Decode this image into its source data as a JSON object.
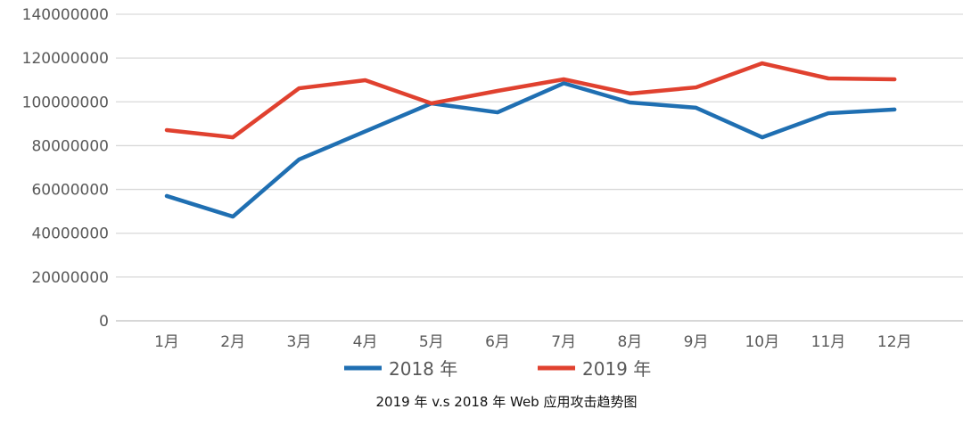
{
  "chart_data": {
    "type": "line",
    "title": "2019 年 v.s 2018 年 Web 应用攻击趋势图",
    "xlabel": "",
    "ylabel": "",
    "categories": [
      "1月",
      "2月",
      "3月",
      "4月",
      "5月",
      "6月",
      "7月",
      "8月",
      "9月",
      "10月",
      "11月",
      "12月"
    ],
    "ylim": [
      0,
      140000000
    ],
    "yticks": [
      0,
      20000000,
      40000000,
      60000000,
      80000000,
      100000000,
      120000000,
      140000000
    ],
    "ytick_labels": [
      "0",
      "20000000",
      "40000000",
      "60000000",
      "80000000",
      "100000000",
      "120000000",
      "140000000"
    ],
    "grid": true,
    "legend_position": "bottom",
    "series": [
      {
        "name": "2018 年",
        "color": "#1f6fb2",
        "values": [
          57000000,
          47600000,
          73700000,
          86500000,
          99300000,
          95200000,
          108500000,
          99700000,
          97300000,
          83800000,
          94800000,
          96500000
        ]
      },
      {
        "name": "2019 年",
        "color": "#e0412f",
        "values": [
          87100000,
          83800000,
          106200000,
          109900000,
          99300000,
          105000000,
          110300000,
          103800000,
          106600000,
          117600000,
          110700000,
          110300000
        ]
      }
    ]
  }
}
